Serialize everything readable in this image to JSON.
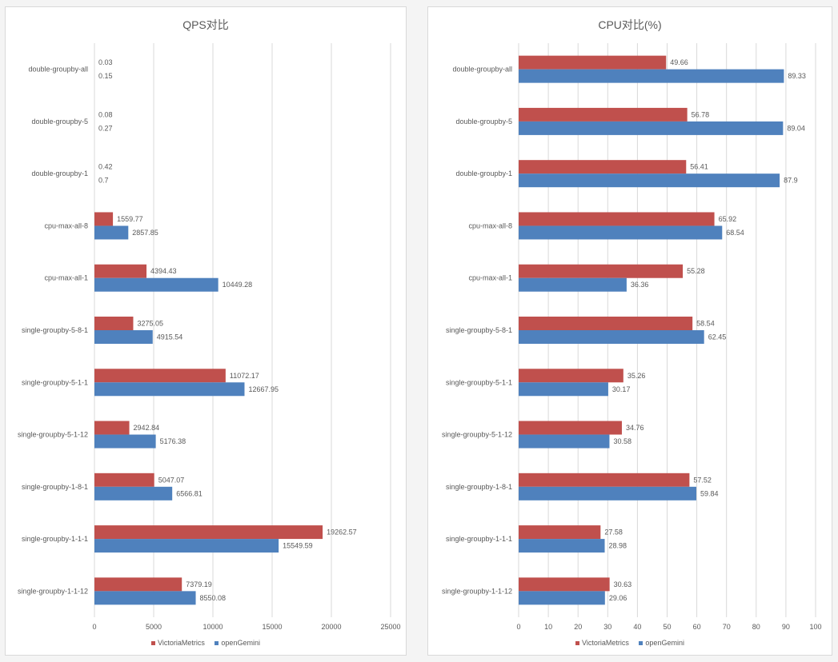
{
  "colors": {
    "victoria": "#c0504d",
    "gemini": "#4f81bd",
    "grid": "#d9d9d9",
    "text": "#595959"
  },
  "chart_data": [
    {
      "type": "bar",
      "orientation": "horizontal",
      "title": "QPS对比",
      "categories": [
        "double-groupby-all",
        "double-groupby-5",
        "double-groupby-1",
        "cpu-max-all-8",
        "cpu-max-all-1",
        "single-groupby-5-8-1",
        "single-groupby-5-1-1",
        "single-groupby-5-1-12",
        "single-groupby-1-8-1",
        "single-groupby-1-1-1",
        "single-groupby-1-1-12"
      ],
      "series": [
        {
          "name": "VictoriaMetrics",
          "values": [
            0.03,
            0.08,
            0.42,
            1559.77,
            4394.43,
            3275.05,
            11072.17,
            2942.84,
            5047.07,
            19262.57,
            7379.19
          ]
        },
        {
          "name": "openGemini",
          "values": [
            0.15,
            0.27,
            0.7,
            2857.85,
            10449.28,
            4915.54,
            12667.95,
            5176.38,
            6566.81,
            15549.59,
            8550.08
          ]
        }
      ],
      "xlim": [
        0,
        25000
      ],
      "xticks": [
        0,
        5000,
        10000,
        15000,
        20000,
        25000
      ],
      "grid": true,
      "legend": "bottom"
    },
    {
      "type": "bar",
      "orientation": "horizontal",
      "title": "CPU对比(%)",
      "categories": [
        "double-groupby-all",
        "double-groupby-5",
        "double-groupby-1",
        "cpu-max-all-8",
        "cpu-max-all-1",
        "single-groupby-5-8-1",
        "single-groupby-5-1-1",
        "single-groupby-5-1-12",
        "single-groupby-1-8-1",
        "single-groupby-1-1-1",
        "single-groupby-1-1-12"
      ],
      "series": [
        {
          "name": "VictoriaMetrics",
          "values": [
            49.66,
            56.78,
            56.41,
            65.92,
            55.28,
            58.54,
            35.26,
            34.76,
            57.52,
            27.58,
            30.63
          ]
        },
        {
          "name": "openGemini",
          "values": [
            89.33,
            89.04,
            87.9,
            68.54,
            36.36,
            62.45,
            30.17,
            30.58,
            59.84,
            28.98,
            29.06
          ]
        }
      ],
      "xlim": [
        0,
        100
      ],
      "xticks": [
        0,
        10,
        20,
        30,
        40,
        50,
        60,
        70,
        80,
        90,
        100
      ],
      "grid": true,
      "legend": "bottom"
    }
  ]
}
